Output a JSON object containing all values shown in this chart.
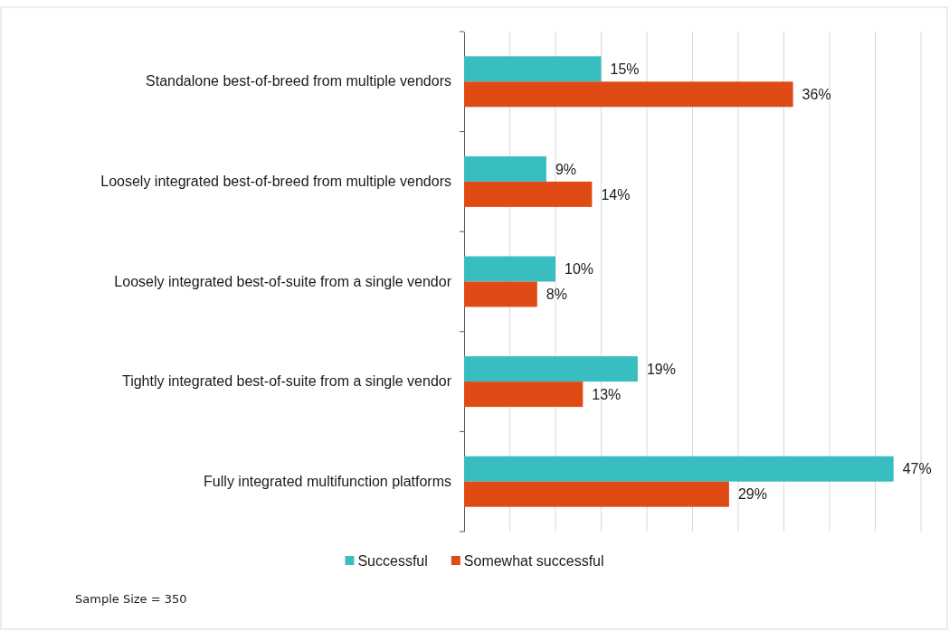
{
  "chart_data": {
    "type": "bar",
    "orientation": "horizontal",
    "categories": [
      "Standalone best-of-breed from multiple vendors",
      "Loosely integrated best-of-breed from multiple vendors",
      "Loosely integrated best-of-suite from a single vendor",
      "Tightly integrated best-of-suite from a single vendor",
      "Fully integrated multifunction platforms"
    ],
    "series": [
      {
        "name": "Successful",
        "color": "#38bdc1",
        "values": [
          15,
          9,
          10,
          19,
          47
        ],
        "value_labels": [
          "15%",
          "9%",
          "10%",
          "19%",
          "47%"
        ]
      },
      {
        "name": "Somewhat successful",
        "color": "#e04a14",
        "values": [
          36,
          14,
          8,
          13,
          29
        ],
        "value_labels": [
          "36%",
          "14%",
          "8%",
          "13%",
          "29%"
        ]
      }
    ],
    "xlim": [
      0,
      50
    ],
    "xticks": [
      {
        "value": 0,
        "label": null
      },
      {
        "value": 5,
        "label": null
      },
      {
        "value": 10,
        "label": null
      },
      {
        "value": 15,
        "label": null
      },
      {
        "value": 20,
        "label": null
      },
      {
        "value": 25,
        "label": null
      },
      {
        "value": 30,
        "label": null
      },
      {
        "value": 35,
        "label": null
      },
      {
        "value": 40,
        "label": null
      },
      {
        "value": 45,
        "label": null
      },
      {
        "value": 50,
        "label": null
      }
    ],
    "grid": "x",
    "legend": "bottom",
    "tick_labels": "y",
    "annotations": [
      "Sample Size = 350"
    ]
  }
}
